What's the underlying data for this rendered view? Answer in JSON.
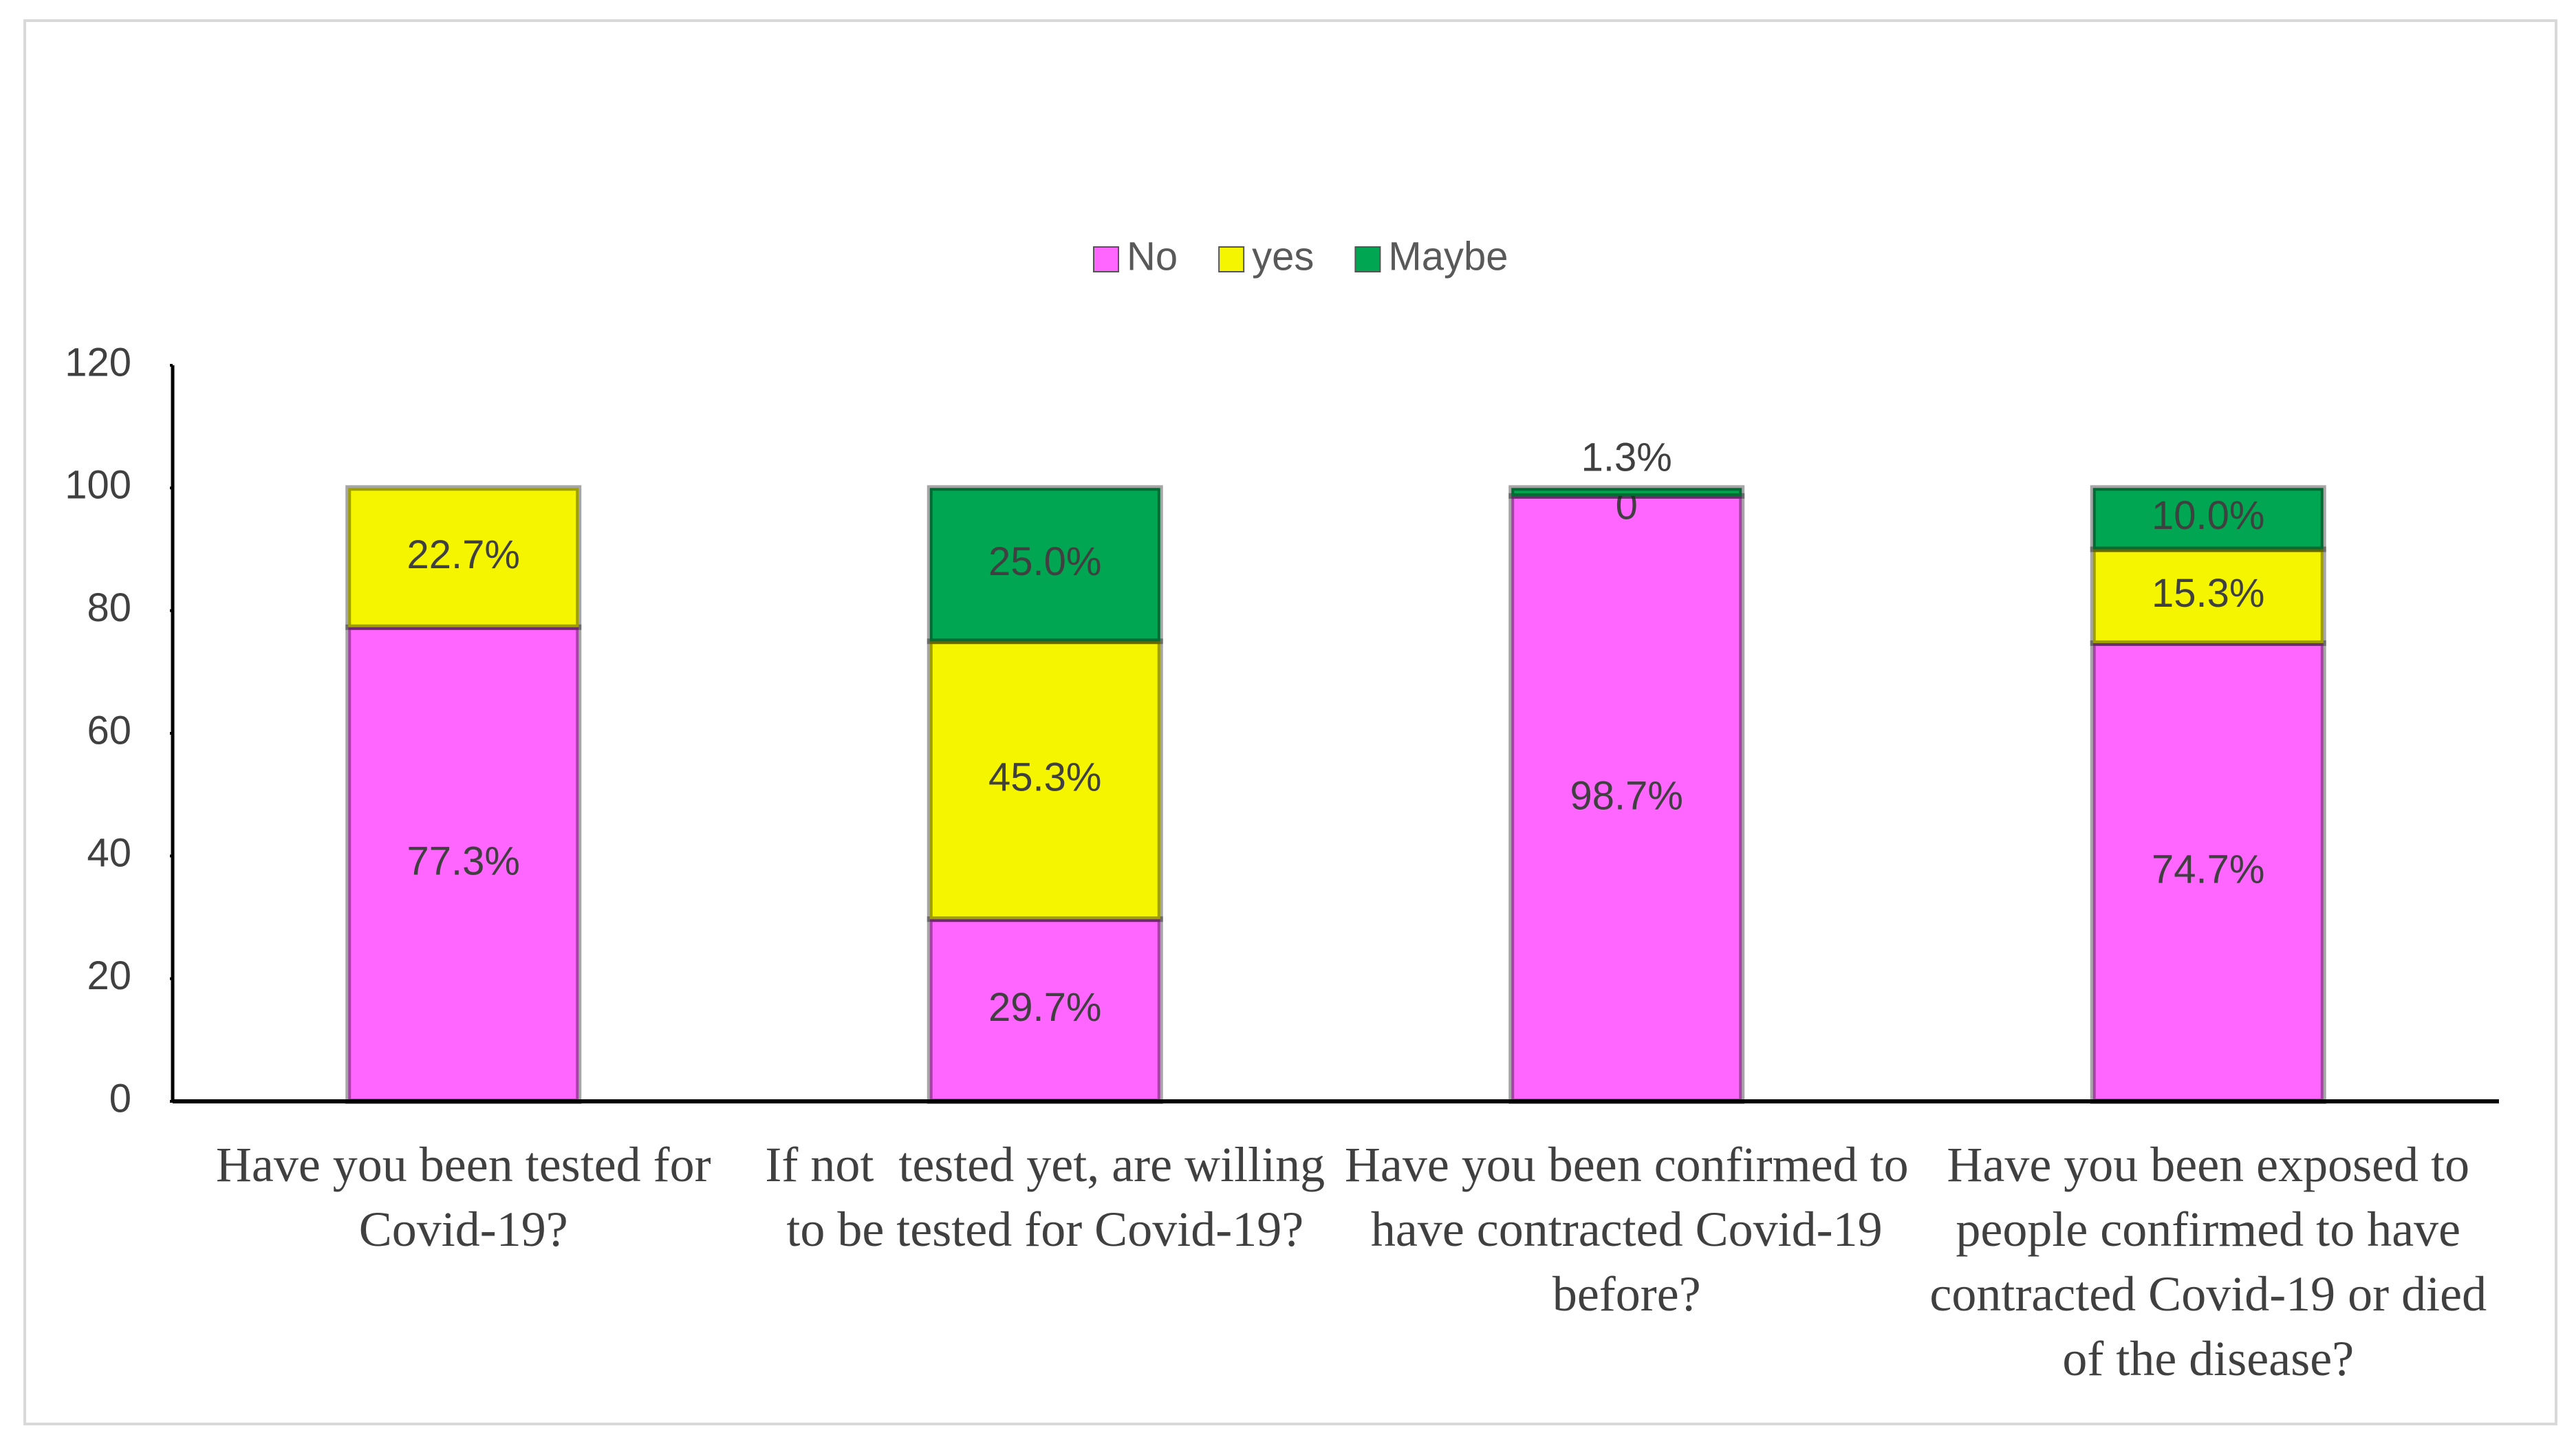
{
  "chart_data": {
    "type": "stacked-bar",
    "categories": [
      "Have you been tested for Covid-19?",
      "If not  tested yet, are willing to be tested for Covid-19?",
      "Have you been confirmed to have contracted Covid-19 before?",
      "Have you been exposed to people confirmed to have contracted Covid-19 or died of the disease?"
    ],
    "series": [
      {
        "name": "No",
        "color": "#ff66ff",
        "values": [
          77.3,
          29.7,
          98.7,
          74.7
        ],
        "value_labels": [
          "77.3%",
          "29.7%",
          "98.7%",
          "74.7%"
        ]
      },
      {
        "name": "yes",
        "color": "#f5f500",
        "values": [
          22.7,
          45.3,
          0,
          15.3
        ],
        "value_labels": [
          "22.7%",
          "45.3%",
          "0",
          "15.3%"
        ]
      },
      {
        "name": "Maybe",
        "color": "#00a651",
        "values": [
          null,
          25.0,
          1.3,
          10.0
        ],
        "value_labels": [
          null,
          "25.0%",
          "1.3%",
          "10.0%"
        ]
      }
    ],
    "ylim": [
      0,
      120
    ],
    "yticks": [
      0,
      20,
      40,
      60,
      80,
      100,
      120
    ],
    "legend": "top"
  }
}
